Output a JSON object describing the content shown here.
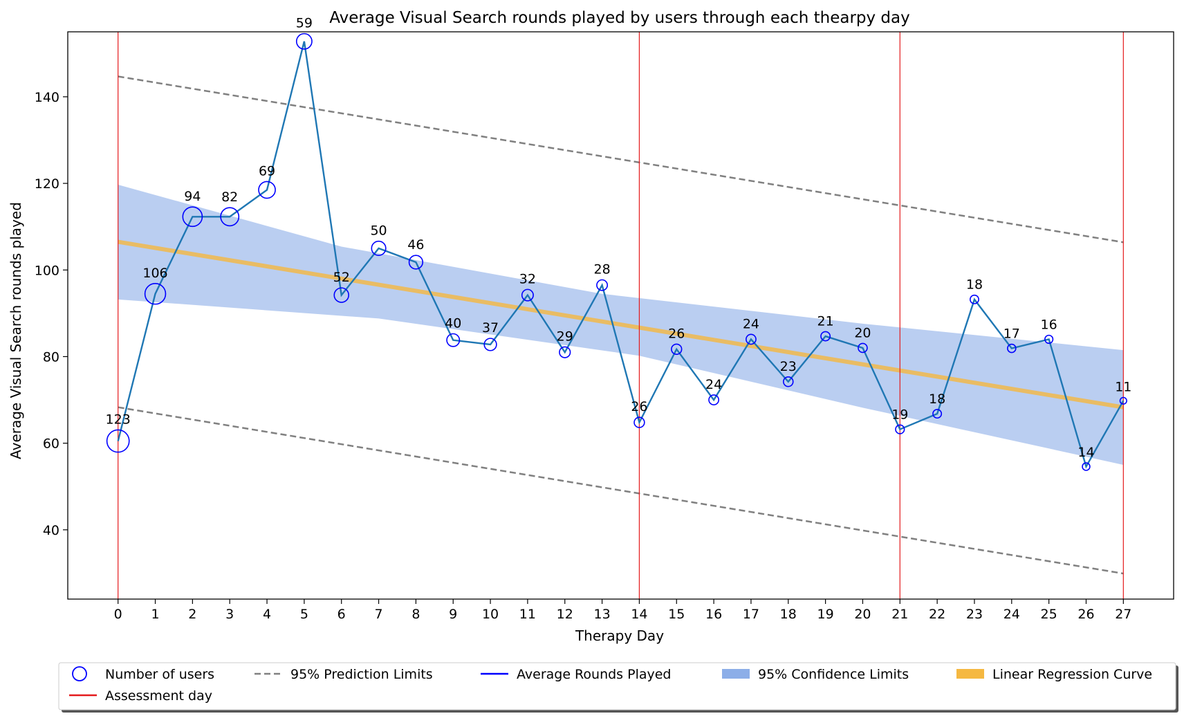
{
  "chart_data": {
    "type": "line",
    "title": "Average Visual Search rounds played by users through each thearpy day",
    "xlabel": "Therapy Day",
    "ylabel": "Average Visual Search rounds played",
    "x": [
      0,
      1,
      2,
      3,
      4,
      5,
      6,
      7,
      8,
      9,
      10,
      11,
      12,
      13,
      14,
      15,
      16,
      17,
      18,
      19,
      20,
      21,
      22,
      23,
      24,
      25,
      26,
      27
    ],
    "x_ticks": [
      "0",
      "1",
      "2",
      "3",
      "4",
      "5",
      "6",
      "7",
      "8",
      "9",
      "10",
      "11",
      "12",
      "13",
      "14",
      "15",
      "16",
      "17",
      "18",
      "19",
      "20",
      "21",
      "22",
      "23",
      "24",
      "25",
      "26",
      "27"
    ],
    "y_ticks": [
      40,
      60,
      80,
      100,
      120,
      140
    ],
    "xlim": [
      -1.35,
      28.35
    ],
    "ylim": [
      24,
      155
    ],
    "grid": false,
    "series": [
      {
        "name": "Average Rounds Played",
        "color": "#1f77b4",
        "values": [
          60.5,
          94.5,
          112.3,
          112.3,
          118.5,
          152.8,
          94.2,
          105.0,
          101.8,
          83.8,
          82.8,
          94.2,
          81.0,
          96.5,
          64.8,
          81.7,
          70.0,
          84.0,
          74.2,
          84.7,
          82.0,
          63.2,
          66.8,
          93.2,
          81.9,
          84.0,
          54.6,
          69.8
        ]
      }
    ],
    "user_counts": {
      "name": "Number of users",
      "color": "#0000ff",
      "values": [
        123,
        106,
        94,
        82,
        69,
        59,
        52,
        50,
        46,
        40,
        37,
        32,
        29,
        28,
        26,
        26,
        24,
        24,
        23,
        21,
        20,
        19,
        18,
        18,
        17,
        16,
        14,
        11
      ]
    },
    "regression": {
      "name": "Linear Regression Curve",
      "color": "#f5b841",
      "start": [
        0,
        106.5
      ],
      "end": [
        27,
        68.3
      ]
    },
    "confidence": {
      "name": "95% Confidence Limits",
      "color": "#8caee8",
      "upper": [
        [
          0,
          119.7
        ],
        [
          6,
          105.4
        ],
        [
          13,
          94.5
        ],
        [
          20,
          87.6
        ],
        [
          27,
          81.5
        ]
      ],
      "lower": [
        [
          0,
          93.2
        ],
        [
          7,
          88.8
        ],
        [
          14,
          80.2
        ],
        [
          20,
          68.2
        ],
        [
          27,
          55.0
        ]
      ]
    },
    "prediction": {
      "name": "95% Prediction Limits",
      "color": "#808080",
      "upper": [
        [
          0,
          144.7
        ],
        [
          27,
          106.4
        ]
      ],
      "lower": [
        [
          0,
          68.3
        ],
        [
          27,
          29.9
        ]
      ]
    },
    "assessment_days": {
      "name": "Assessment day",
      "color": "#e41a1c",
      "x": [
        0,
        14,
        21,
        27
      ]
    },
    "legend_position": "bottom",
    "legend": [
      {
        "key": "users",
        "label": "Number of users"
      },
      {
        "key": "prediction",
        "label": "95% Prediction Limits"
      },
      {
        "key": "line",
        "label": "Average Rounds Played"
      },
      {
        "key": "confidence",
        "label": "95% Confidence Limits"
      },
      {
        "key": "regression",
        "label": "Linear Regression Curve"
      },
      {
        "key": "assessment",
        "label": "Assessment day"
      }
    ]
  }
}
